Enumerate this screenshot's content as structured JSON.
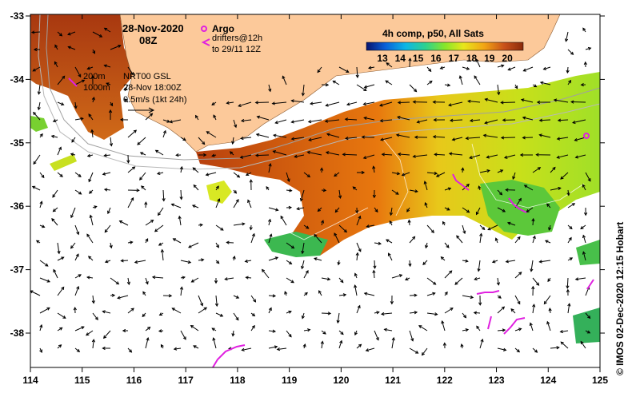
{
  "map": {
    "date": "28-Nov-2020",
    "time": "08Z",
    "colorbar": {
      "title": "4h comp, p50, All Sats",
      "ticks": [
        "13",
        "14",
        "15",
        "16",
        "17",
        "18",
        "19",
        "20"
      ],
      "colors": [
        "#08146e",
        "#0a5fd8",
        "#0db6e6",
        "#2fd28c",
        "#86e62a",
        "#e8e61a",
        "#f2a514",
        "#c8501a",
        "#8a2a0a"
      ]
    },
    "legend": {
      "argo": "Argo",
      "drifters_line1": "drifters@12h",
      "drifters_line2": "to 29/11 12Z",
      "argo_color": "#e020e0"
    },
    "depths": [
      "200m",
      "1000m"
    ],
    "current_info": {
      "line1": "NRT00 GSL",
      "line2": "28-Nov 18:00Z",
      "line3": "0.5m/s (1kt 24h)"
    },
    "lon_labels": [
      "114",
      "115",
      "116",
      "117",
      "118",
      "119",
      "120",
      "121",
      "122",
      "123",
      "124",
      "125"
    ],
    "lat_labels": [
      "-33",
      "-34",
      "-35",
      "-36",
      "-37",
      "-38"
    ],
    "credit": "© IMOS 02-Dec-2020 12:15 Hobart",
    "land_color": "#fcc99a"
  }
}
